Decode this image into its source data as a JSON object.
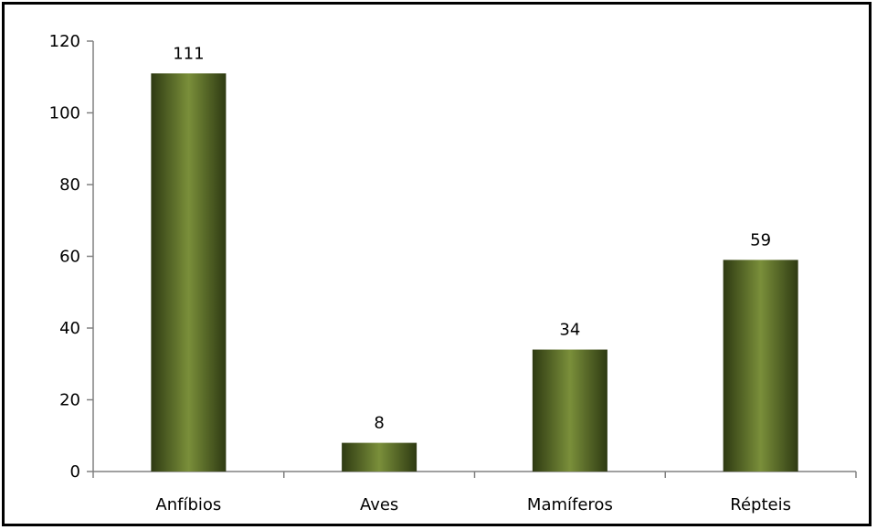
{
  "chart_data": {
    "type": "bar",
    "categories": [
      "Anfíbios",
      "Aves",
      "Mamíferos",
      "Répteis"
    ],
    "values": [
      111,
      8,
      34,
      59
    ],
    "data_labels": [
      "111",
      "8",
      "34",
      "59"
    ],
    "y_ticks": [
      "0",
      "20",
      "40",
      "60",
      "80",
      "100",
      "120"
    ],
    "ylim": [
      0,
      120
    ],
    "title": "",
    "xlabel": "",
    "ylabel": "",
    "grid": false,
    "legend": "none",
    "colors": {
      "bar_dark": "#2e3a12",
      "bar_light": "#7a8f3a",
      "axis": "#808080"
    }
  }
}
